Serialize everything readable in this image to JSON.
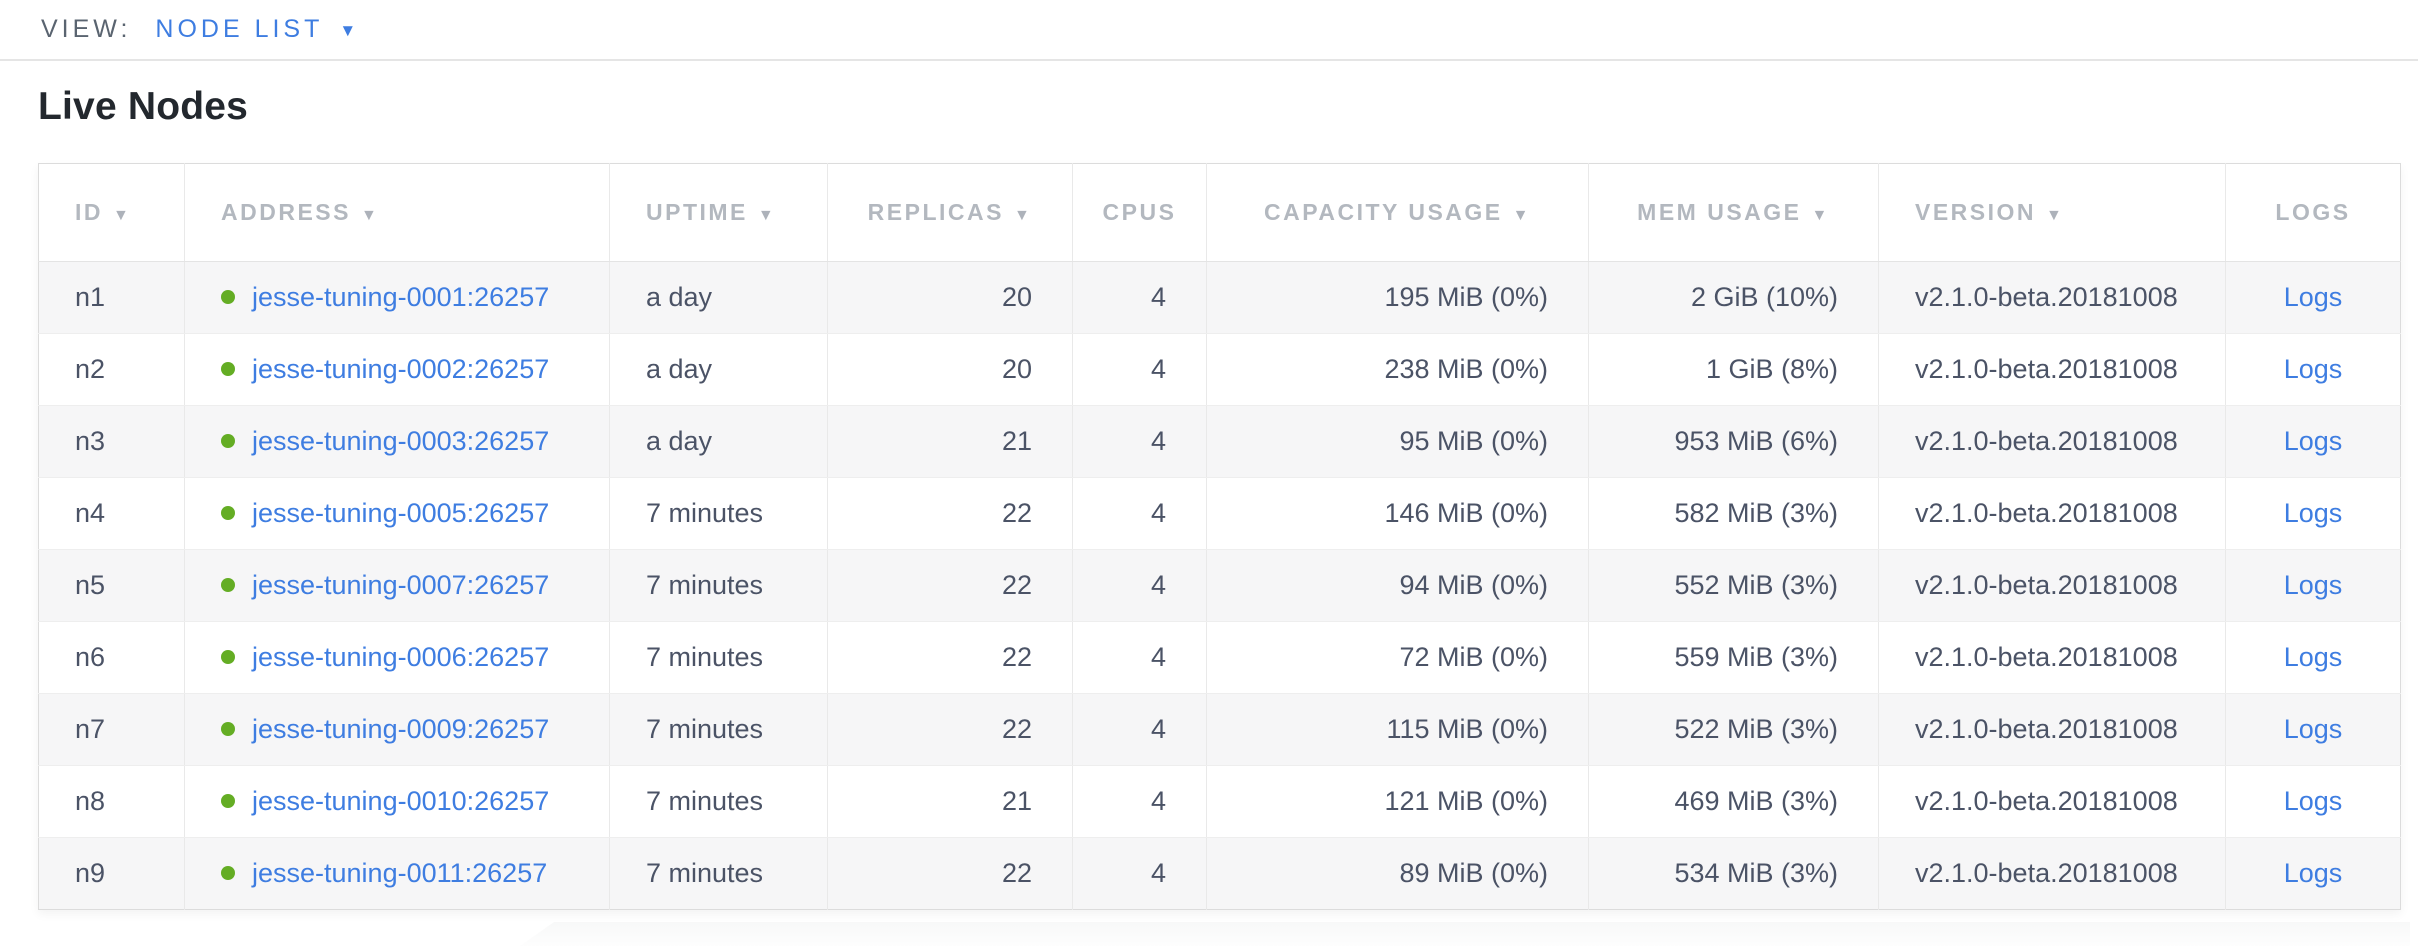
{
  "view_bar": {
    "label": "VIEW:",
    "selected": "NODE LIST"
  },
  "title": "Live Nodes",
  "icons": {
    "sort_arrow": "▼",
    "dropdown_caret": "▼"
  },
  "colors": {
    "link_blue": "#3e7de1",
    "live_dot_green": "#64ad24",
    "header_gray": "#b3b8bf",
    "cell_text": "#4b5366"
  },
  "table": {
    "columns": [
      {
        "key": "id",
        "label": "ID",
        "sortable": true
      },
      {
        "key": "address",
        "label": "ADDRESS",
        "sortable": true
      },
      {
        "key": "uptime",
        "label": "UPTIME",
        "sortable": true
      },
      {
        "key": "replicas",
        "label": "REPLICAS",
        "sortable": true
      },
      {
        "key": "cpus",
        "label": "CPUS",
        "sortable": false
      },
      {
        "key": "capacity_usage",
        "label": "CAPACITY USAGE",
        "sortable": true
      },
      {
        "key": "mem_usage",
        "label": "MEM USAGE",
        "sortable": true
      },
      {
        "key": "version",
        "label": "VERSION",
        "sortable": true
      },
      {
        "key": "logs",
        "label": "LOGS",
        "sortable": false
      }
    ],
    "rows": [
      {
        "id": "n1",
        "status": "live",
        "address": "jesse-tuning-0001:26257",
        "uptime": "a day",
        "replicas": "20",
        "cpus": "4",
        "capacity_usage": "195 MiB (0%)",
        "mem_usage": "2 GiB (10%)",
        "version": "v2.1.0-beta.20181008",
        "logs_label": "Logs"
      },
      {
        "id": "n2",
        "status": "live",
        "address": "jesse-tuning-0002:26257",
        "uptime": "a day",
        "replicas": "20",
        "cpus": "4",
        "capacity_usage": "238 MiB (0%)",
        "mem_usage": "1 GiB (8%)",
        "version": "v2.1.0-beta.20181008",
        "logs_label": "Logs"
      },
      {
        "id": "n3",
        "status": "live",
        "address": "jesse-tuning-0003:26257",
        "uptime": "a day",
        "replicas": "21",
        "cpus": "4",
        "capacity_usage": "95 MiB (0%)",
        "mem_usage": "953 MiB (6%)",
        "version": "v2.1.0-beta.20181008",
        "logs_label": "Logs"
      },
      {
        "id": "n4",
        "status": "live",
        "address": "jesse-tuning-0005:26257",
        "uptime": "7 minutes",
        "replicas": "22",
        "cpus": "4",
        "capacity_usage": "146 MiB (0%)",
        "mem_usage": "582 MiB (3%)",
        "version": "v2.1.0-beta.20181008",
        "logs_label": "Logs"
      },
      {
        "id": "n5",
        "status": "live",
        "address": "jesse-tuning-0007:26257",
        "uptime": "7 minutes",
        "replicas": "22",
        "cpus": "4",
        "capacity_usage": "94 MiB (0%)",
        "mem_usage": "552 MiB (3%)",
        "version": "v2.1.0-beta.20181008",
        "logs_label": "Logs"
      },
      {
        "id": "n6",
        "status": "live",
        "address": "jesse-tuning-0006:26257",
        "uptime": "7 minutes",
        "replicas": "22",
        "cpus": "4",
        "capacity_usage": "72 MiB (0%)",
        "mem_usage": "559 MiB (3%)",
        "version": "v2.1.0-beta.20181008",
        "logs_label": "Logs"
      },
      {
        "id": "n7",
        "status": "live",
        "address": "jesse-tuning-0009:26257",
        "uptime": "7 minutes",
        "replicas": "22",
        "cpus": "4",
        "capacity_usage": "115 MiB (0%)",
        "mem_usage": "522 MiB (3%)",
        "version": "v2.1.0-beta.20181008",
        "logs_label": "Logs"
      },
      {
        "id": "n8",
        "status": "live",
        "address": "jesse-tuning-0010:26257",
        "uptime": "7 minutes",
        "replicas": "21",
        "cpus": "4",
        "capacity_usage": "121 MiB (0%)",
        "mem_usage": "469 MiB (3%)",
        "version": "v2.1.0-beta.20181008",
        "logs_label": "Logs"
      },
      {
        "id": "n9",
        "status": "live",
        "address": "jesse-tuning-0011:26257",
        "uptime": "7 minutes",
        "replicas": "22",
        "cpus": "4",
        "capacity_usage": "89 MiB (0%)",
        "mem_usage": "534 MiB (3%)",
        "version": "v2.1.0-beta.20181008",
        "logs_label": "Logs"
      }
    ]
  }
}
